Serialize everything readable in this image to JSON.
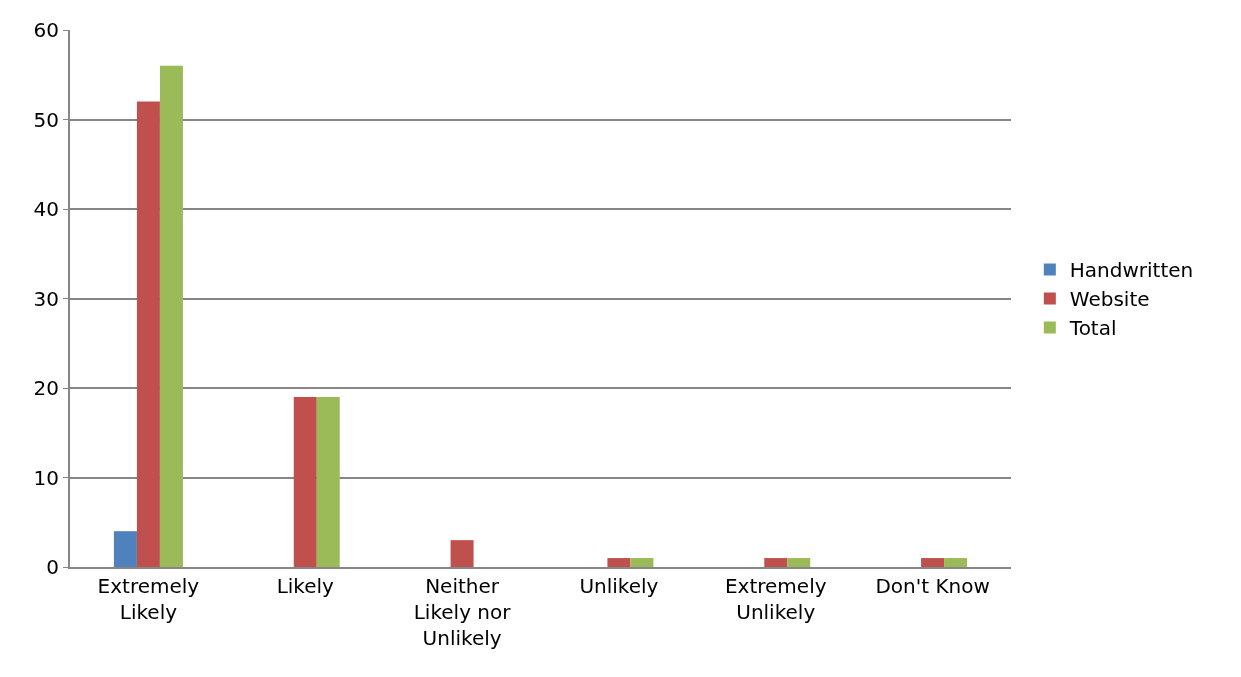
{
  "chart_data": {
    "type": "bar",
    "categories": [
      "Extremely Likely",
      "Likely",
      "Neither Likely nor Unlikely",
      "Unlikely",
      "Extremely Unlikely",
      "Don't Know"
    ],
    "series": [
      {
        "name": "Handwritten",
        "color": "#4f81bd",
        "values": [
          4,
          0,
          0,
          0,
          0,
          0
        ]
      },
      {
        "name": "Website",
        "color": "#c0504d",
        "values": [
          52,
          19,
          3,
          1,
          1,
          1
        ]
      },
      {
        "name": "Total",
        "color": "#9bbb59",
        "values": [
          56,
          19,
          0,
          1,
          1,
          1
        ]
      }
    ],
    "ylim": [
      0,
      60
    ],
    "yticks": [
      0,
      10,
      20,
      30,
      40,
      50,
      60
    ],
    "grid": "y",
    "legend": "right"
  }
}
